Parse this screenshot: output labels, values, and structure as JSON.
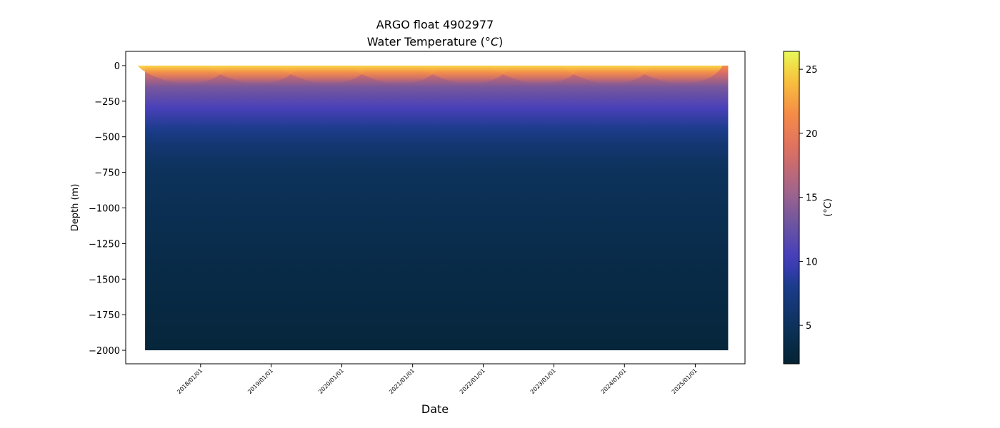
{
  "chart_data": {
    "type": "heatmap",
    "title": "ARGO float 4902977",
    "subtitle": "Water Temperature (",
    "subtitle_unit": "°C",
    "subtitle_close": ")",
    "xlabel": "Date",
    "ylabel": "Depth (m)",
    "colorbar_label_prefix": "(",
    "colorbar_label_unit": "°C",
    "colorbar_label_suffix": ")",
    "x_range": [
      "2017-03-20",
      "2025-06-20"
    ],
    "xlim": [
      "2016-12-10",
      "2025-09-15"
    ],
    "x_ticks": [
      {
        "date": "2018-01-01",
        "label": "2018/01/01"
      },
      {
        "date": "2019-01-01",
        "label": "2019/01/01"
      },
      {
        "date": "2020-01-01",
        "label": "2020/01/01"
      },
      {
        "date": "2021-01-01",
        "label": "2021/01/01"
      },
      {
        "date": "2022-01-01",
        "label": "2022/01/01"
      },
      {
        "date": "2023-01-01",
        "label": "2023/01/01"
      },
      {
        "date": "2024-01-01",
        "label": "2024/01/01"
      },
      {
        "date": "2025-01-01",
        "label": "2025/01/01"
      }
    ],
    "ylim": [
      -2095,
      100
    ],
    "y_ticks": [
      {
        "value": 0,
        "label": "0"
      },
      {
        "value": -250,
        "label": "−250"
      },
      {
        "value": -500,
        "label": "−500"
      },
      {
        "value": -750,
        "label": "−750"
      },
      {
        "value": -1000,
        "label": "−1000"
      },
      {
        "value": -1250,
        "label": "−1250"
      },
      {
        "value": -1500,
        "label": "−1500"
      },
      {
        "value": -1750,
        "label": "−1750"
      },
      {
        "value": -2000,
        "label": "−2000"
      }
    ],
    "colorbar": {
      "vmin": 2,
      "vmax": 26.4,
      "ticks": [
        {
          "value": 5,
          "label": "5"
        },
        {
          "value": 10,
          "label": "10"
        },
        {
          "value": 15,
          "label": "15"
        },
        {
          "value": 20,
          "label": "20"
        },
        {
          "value": 25,
          "label": "25"
        }
      ],
      "colormap": "thermal"
    },
    "temperature_profile": [
      {
        "depth": 0,
        "temp": 21.5
      },
      {
        "depth": -50,
        "temp": 18.5
      },
      {
        "depth": -150,
        "temp": 13.5
      },
      {
        "depth": -300,
        "temp": 10.5
      },
      {
        "depth": -450,
        "temp": 8.0
      },
      {
        "depth": -550,
        "temp": 6.5
      },
      {
        "depth": -700,
        "temp": 5.2
      },
      {
        "depth": -1000,
        "temp": 4.4
      },
      {
        "depth": -1500,
        "temp": 3.4
      },
      {
        "depth": -2000,
        "temp": 2.6
      }
    ],
    "seasonal_max_dates": [
      "2017-09-01",
      "2018-09-01",
      "2019-09-01",
      "2020-09-01",
      "2021-09-01",
      "2022-09-01",
      "2023-09-01",
      "2024-09-01"
    ],
    "grid": false
  }
}
